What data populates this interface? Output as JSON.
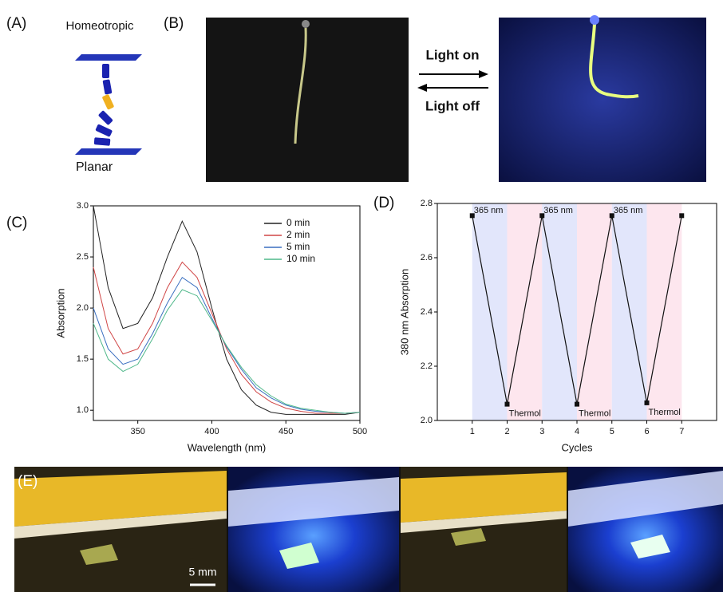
{
  "panel_labels": [
    "(A)",
    "(B)",
    "(C)",
    "(D)",
    "(E)"
  ],
  "panel_a": {
    "top_label": "Homeotropic",
    "bottom_label": "Planar"
  },
  "panel_b": {
    "arrow_top": "Light on",
    "arrow_bottom": "Light off"
  },
  "panel_e": {
    "scale_bar": "5 mm"
  },
  "chart_data": [
    {
      "type": "line",
      "x_label": "Wavelength (nm)",
      "y_label": "Absorption",
      "x": [
        320,
        330,
        340,
        350,
        360,
        370,
        380,
        390,
        400,
        410,
        420,
        430,
        440,
        450,
        460,
        470,
        480,
        490,
        500
      ],
      "xlim": [
        320,
        500
      ],
      "xticks": [
        350,
        400,
        450,
        500
      ],
      "ylim": [
        0.9,
        3.0
      ],
      "yticks": [
        {
          "value": 1,
          "label": "1.0"
        },
        1.5,
        {
          "value": 2,
          "label": "2.0"
        },
        2.5,
        {
          "value": 3,
          "label": "3.0"
        }
      ],
      "legend": "upper right",
      "series": [
        {
          "name": "0 min",
          "color": "#222222",
          "values": [
            3.0,
            2.2,
            1.8,
            1.85,
            2.1,
            2.5,
            2.85,
            2.55,
            2.0,
            1.5,
            1.2,
            1.05,
            0.98,
            0.96,
            0.96,
            0.96,
            0.96,
            0.96,
            0.98
          ]
        },
        {
          "name": "2 min",
          "color": "#d04545",
          "values": [
            2.4,
            1.8,
            1.55,
            1.6,
            1.85,
            2.2,
            2.45,
            2.3,
            1.95,
            1.6,
            1.35,
            1.18,
            1.08,
            1.02,
            0.99,
            0.97,
            0.97,
            0.97,
            0.98
          ]
        },
        {
          "name": "5 min",
          "color": "#3a6fc0",
          "values": [
            2.0,
            1.6,
            1.45,
            1.5,
            1.75,
            2.05,
            2.3,
            2.2,
            1.9,
            1.62,
            1.4,
            1.22,
            1.12,
            1.05,
            1.01,
            0.99,
            0.98,
            0.97,
            0.98
          ]
        },
        {
          "name": "10 min",
          "color": "#4fb88a",
          "values": [
            1.85,
            1.5,
            1.38,
            1.45,
            1.7,
            1.98,
            2.18,
            2.12,
            1.88,
            1.63,
            1.42,
            1.25,
            1.14,
            1.06,
            1.02,
            1.0,
            0.98,
            0.97,
            0.98
          ]
        }
      ]
    },
    {
      "type": "line",
      "x_label": "Cycles",
      "y_label": "380 nm Absorption",
      "x": [
        1,
        2,
        3,
        4,
        5,
        6,
        7
      ],
      "xlim": [
        0,
        8
      ],
      "xticks": [
        1,
        2,
        3,
        4,
        5,
        6,
        7
      ],
      "ylim": [
        2.0,
        2.8
      ],
      "yticks": [
        {
          "value": 2,
          "label": "2.0"
        },
        2.2,
        2.4,
        2.6,
        {
          "value": 2.8,
          "label": "2.8"
        }
      ],
      "series": [
        {
          "color": "#111111",
          "values": [
            2.755,
            2.06,
            2.755,
            2.06,
            2.755,
            2.065,
            2.755
          ],
          "point_labels": [
            "365 nm",
            "Thermol",
            "365 nm",
            "Thermol",
            "365 nm",
            "Thermol",
            null
          ]
        }
      ]
    }
  ]
}
